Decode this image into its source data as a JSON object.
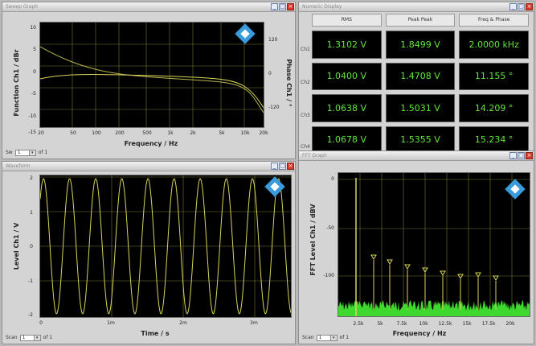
{
  "windows": {
    "sweep": {
      "title": "Sweep Graph",
      "ylabel_left": "Function Ch1 / dBr",
      "ylabel_right": "Phase Ch1 / °",
      "xlabel": "Frequency / Hz",
      "yticks_left": [
        "10",
        "5",
        "0",
        "-5",
        "-10",
        "-15"
      ],
      "yticks_right": [
        "120",
        "0",
        "-120"
      ],
      "xticks": [
        "20",
        "50",
        "100",
        "200",
        "500",
        "1k",
        "2k",
        "5k",
        "10k",
        "20k"
      ],
      "footer_label": "Sw",
      "footer_value": "1",
      "footer_suffix": "of 1"
    },
    "result": {
      "title": "Numeric Display",
      "headers": [
        "RMS",
        "Peak Peak",
        "Freq & Phase"
      ],
      "row_labels": [
        "Ch1",
        "Ch2",
        "Ch3",
        "Ch4"
      ],
      "rows": [
        [
          "1.3102 V",
          "1.8499 V",
          "2.0000 kHz"
        ],
        [
          "1.0400 V",
          "1.4708 V",
          "11.155 °"
        ],
        [
          "1.0638 V",
          "1.5031 V",
          "14.209 °"
        ],
        [
          "1.0678 V",
          "1.5355 V",
          "15.234 °"
        ]
      ]
    },
    "waveform": {
      "title": "Waveform",
      "ylabel": "Level Ch1 / V",
      "xlabel": "Time / s",
      "yticks": [
        "2",
        "1",
        "0",
        "-1",
        "-2"
      ],
      "xticks": [
        "0",
        "1m",
        "2m",
        "3m"
      ],
      "footer_label": "Scan",
      "footer_value": "1",
      "footer_suffix": "of 1"
    },
    "fft": {
      "title": "FFT Graph",
      "ylabel": "FFT Level Ch1 / dBV",
      "xlabel": "Frequency / Hz",
      "yticks": [
        "0",
        "-50",
        "-100"
      ],
      "xticks": [
        "2.5k",
        "5k",
        "7.5k",
        "10k",
        "12.5k",
        "15k",
        "17.5k",
        "20k"
      ],
      "footer_label": "Scan",
      "footer_value": "1",
      "footer_suffix": "of 1"
    }
  },
  "colors": {
    "trace_yellow": "#d8d45a",
    "trace_green": "#3fd82f",
    "numeric_green": "#5fe83a",
    "logo_blue": "#3a9bdc"
  },
  "icons": [
    "minimize-icon",
    "close-icon",
    "rs-logo-icon",
    "dropdown-arrow-icon"
  ]
}
